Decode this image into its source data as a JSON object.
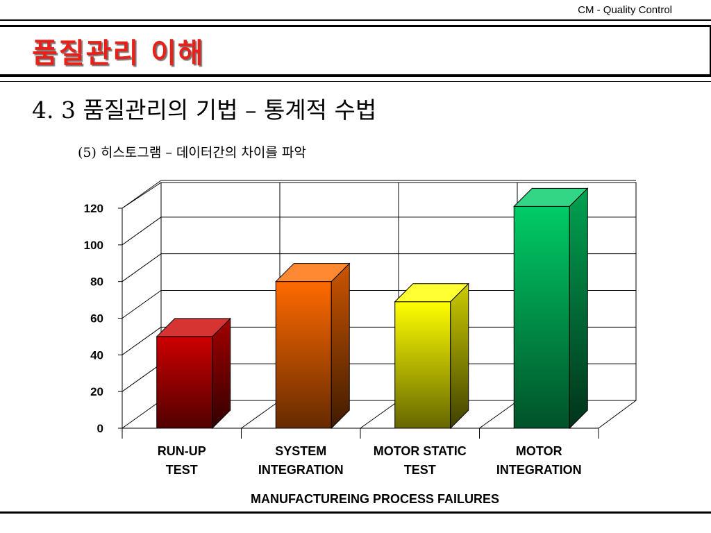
{
  "header": {
    "label": "CM - Quality Control"
  },
  "title": {
    "text": "품질관리 이해"
  },
  "section": {
    "heading": "4. 3 품질관리의 기법 – 통계적 수법"
  },
  "subtitle": {
    "text": "(5) 히스토그램 – 데이터간의 차이를 파악"
  },
  "chart_data": {
    "type": "bar",
    "categories": [
      [
        "RUN-UP",
        "TEST"
      ],
      [
        "SYSTEM",
        "INTEGRATION"
      ],
      [
        "MOTOR STATIC",
        "TEST"
      ],
      [
        "MOTOR",
        "INTEGRATION"
      ]
    ],
    "values": [
      50,
      80,
      69,
      121
    ],
    "bar_colors": [
      "#cc0000",
      "#ff6a00",
      "#ffff00",
      "#00cc66"
    ],
    "xlabel": "MANUFACTUREING PROCESS FAILURES",
    "ylabel": "",
    "ylim": [
      0,
      120
    ],
    "yticks": [
      0,
      20,
      40,
      60,
      80,
      100,
      120
    ],
    "grid": true,
    "style": "3d"
  }
}
